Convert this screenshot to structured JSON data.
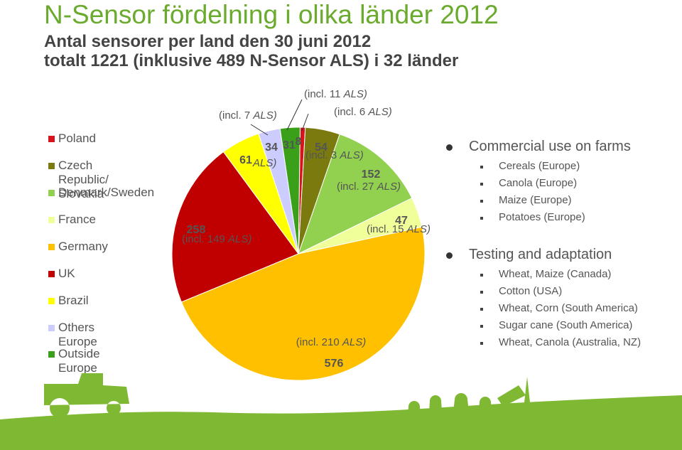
{
  "header": {
    "title": "N-Sensor fördelning i olika länder 2012",
    "subtitle_line1": "Antal sensorer per land den 30 juni 2012",
    "subtitle_line2": "totalt 1221 (inklusive 489 N-Sensor ALS) i 32 länder"
  },
  "legend": [
    {
      "label": "Poland",
      "color": "#d7131b"
    },
    {
      "label": "Czech Republic/\nSlovakia",
      "color": "#7a7a0f"
    },
    {
      "label": "Denmark/Sweden",
      "color": "#92d050"
    },
    {
      "label": "France",
      "color": "#f0ff9a"
    },
    {
      "label": "Germany",
      "color": "#ffc000"
    },
    {
      "label": "UK",
      "color": "#c00000"
    },
    {
      "label": "Brazil",
      "color": "#ffff00"
    },
    {
      "label": "Others Europe",
      "color": "#ccccff"
    },
    {
      "label": "Outside Europe",
      "color": "#3aa019"
    }
  ],
  "chart_data": {
    "type": "pie",
    "total": "1221",
    "slices": [
      {
        "category": "Poland",
        "value": 8,
        "value_label": "8",
        "als_label": "(incl. 6 ALS)",
        "color": "#d7131b"
      },
      {
        "category": "Czech Republic/Slovakia",
        "value": 54,
        "value_label": "54",
        "als_label": "(incl. 3 ALS)",
        "color": "#7a7a0f"
      },
      {
        "category": "Denmark/Sweden",
        "value": 152,
        "value_label": "152",
        "als_label": "(incl. 27 ALS)",
        "color": "#92d050"
      },
      {
        "category": "France",
        "value": 47,
        "value_label": "47",
        "als_label": "(incl. 15 ALS)",
        "color": "#f0ff9a"
      },
      {
        "category": "Germany",
        "value": 576,
        "value_label": "576",
        "als_label": "(incl. 210 ALS)",
        "color": "#ffc000"
      },
      {
        "category": "UK",
        "value": 258,
        "value_label": "258",
        "als_label": "(incl. 149 ALS)",
        "color": "#c00000"
      },
      {
        "category": "Brazil",
        "value": 61,
        "value_label": "61",
        "als_label": "ALS)",
        "color": "#ffff00"
      },
      {
        "category": "Others Europe",
        "value": 34,
        "value_label": "34",
        "als_label": "(incl. 7 ALS)",
        "color": "#ccccff"
      },
      {
        "category": "Outside Europe",
        "value": 31,
        "value_label": "31",
        "als_label": "(incl. 11 ALS)",
        "color": "#3aa019"
      }
    ]
  },
  "uses": [
    {
      "title": "Commercial use on farms",
      "items": [
        "Cereals (Europe)",
        "Canola (Europe)",
        "Maize (Europe)",
        "Potatoes (Europe)"
      ]
    },
    {
      "title": "Testing and adaptation",
      "items": [
        "Wheat, Maize (Canada)",
        "Cotton (USA)",
        "Wheat, Corn (South America)",
        "Sugar cane (South America)",
        "Wheat, Canola (Australia, NZ)"
      ]
    }
  ],
  "colors": {
    "title": "#6aab2d",
    "field": "#7fb832"
  }
}
